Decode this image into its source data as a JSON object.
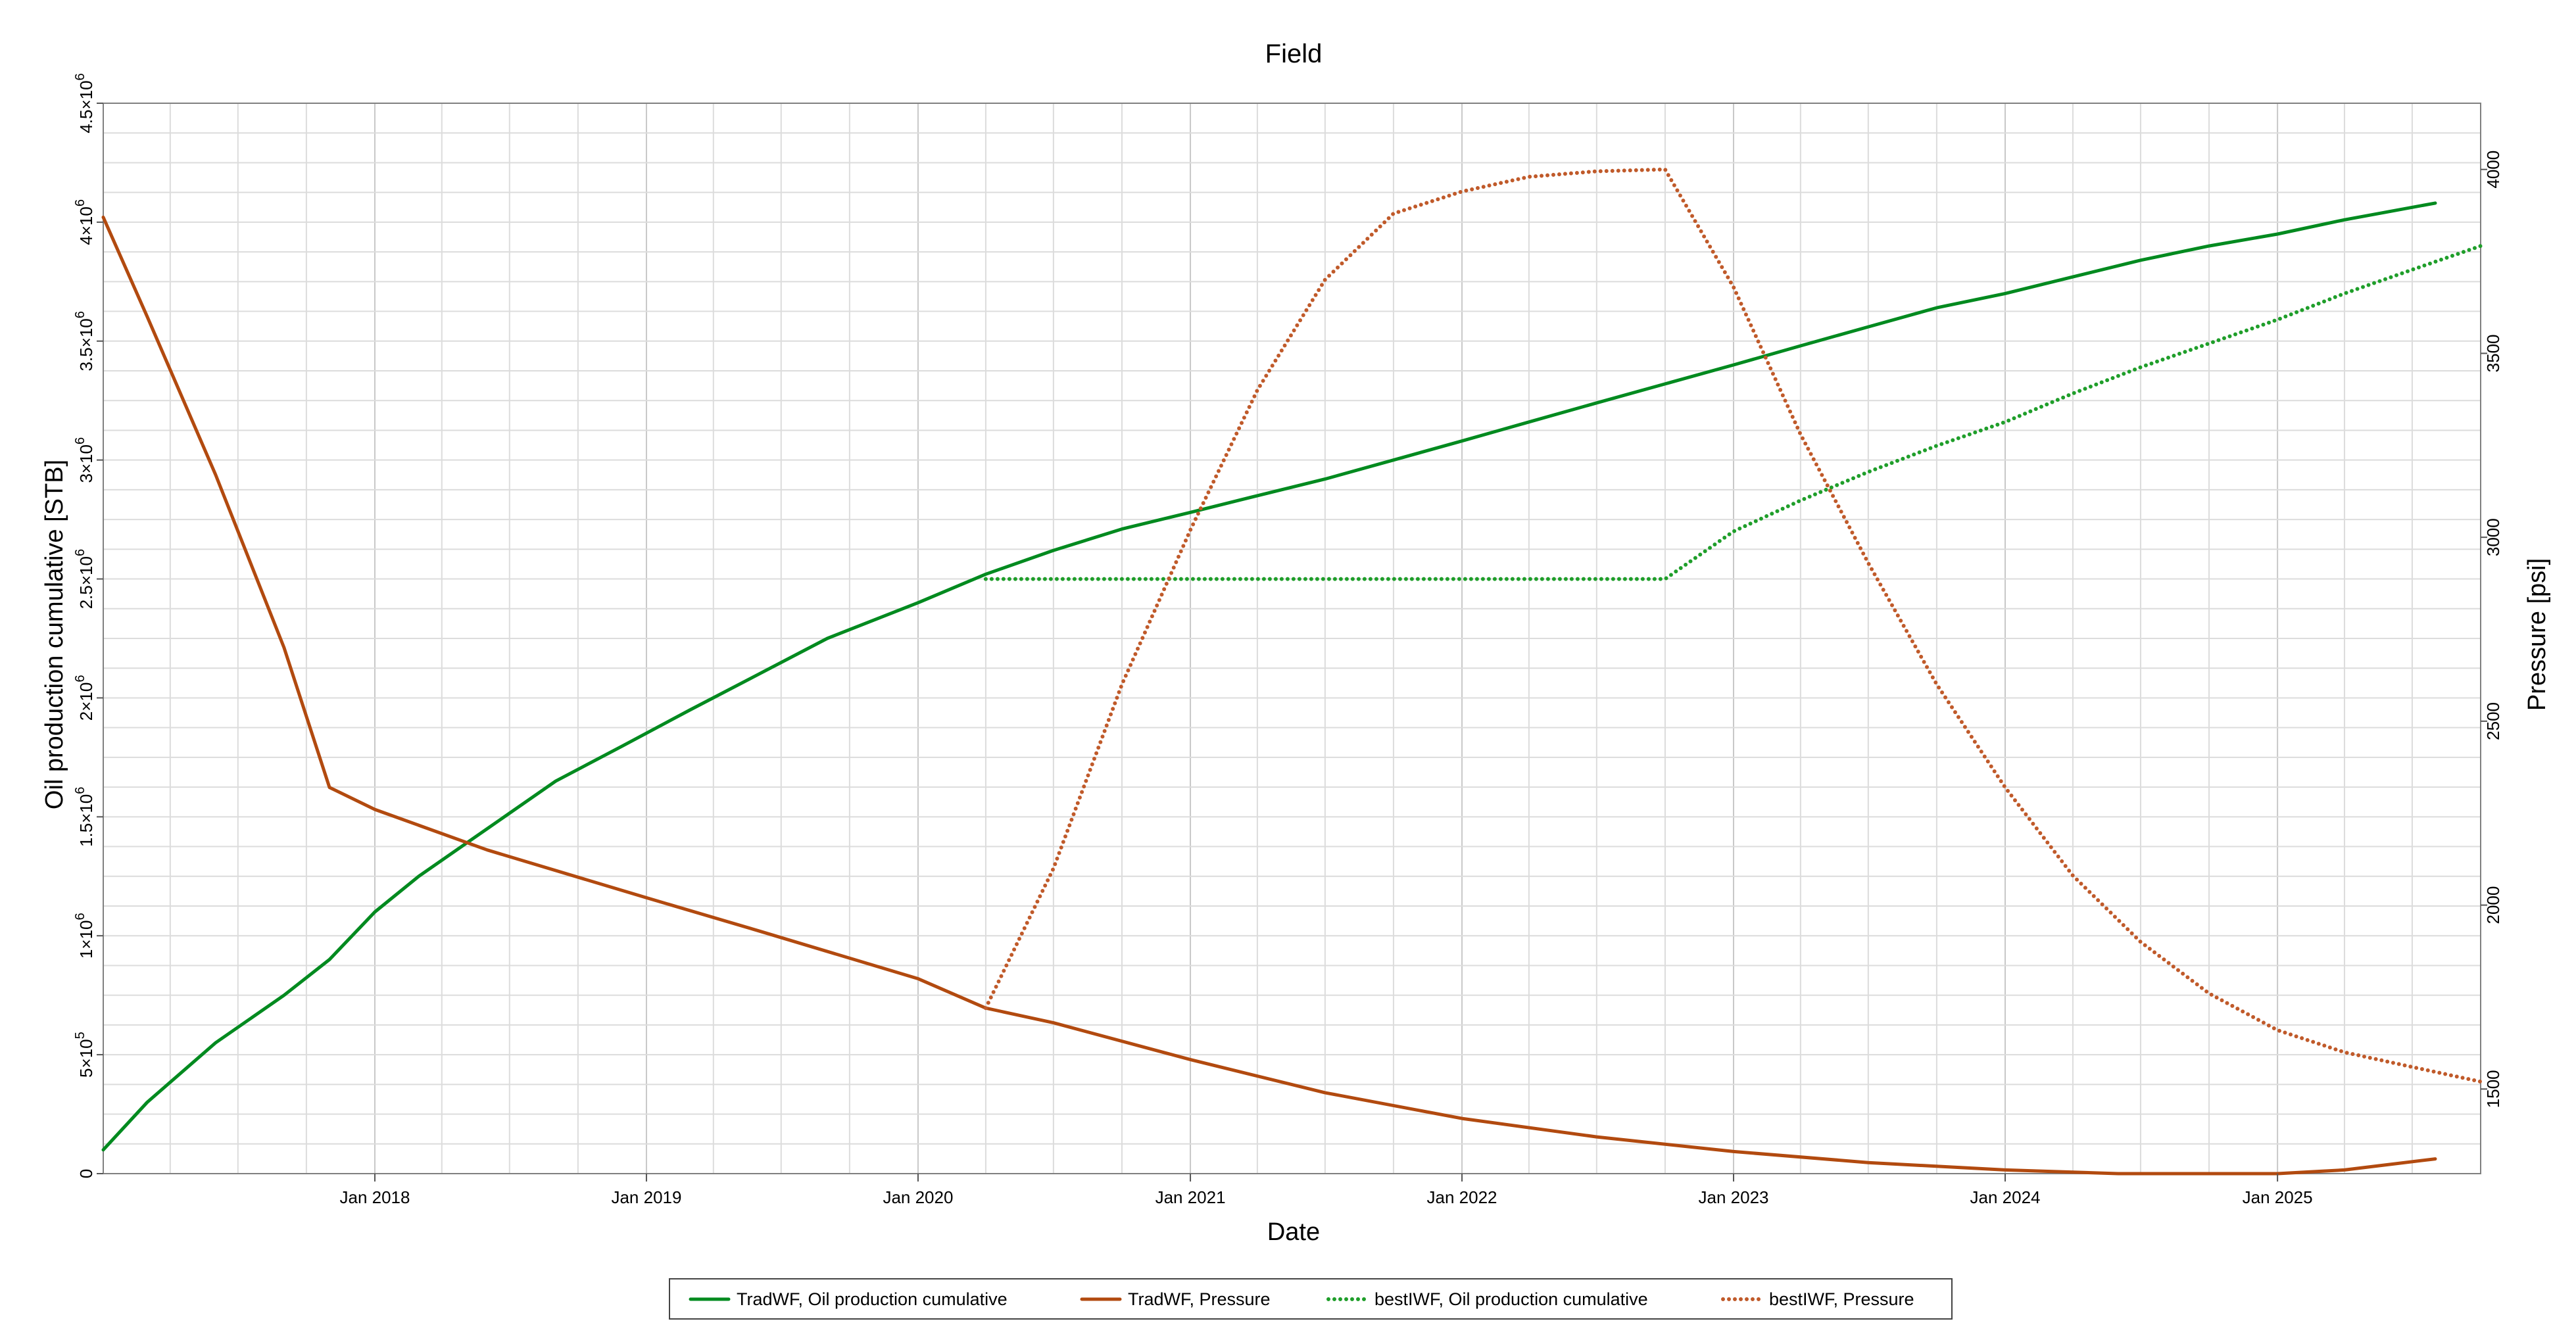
{
  "chart_data": {
    "type": "line",
    "title": "Field",
    "xlabel": "Date",
    "ylabel_left": "Oil production cumulative [STB]",
    "ylabel_right": "Pressure [psi]",
    "x_range": [
      "2017-01-01",
      "2025-10-01"
    ],
    "ylim_left": [
      0,
      4500000
    ],
    "ylim_right": [
      1270,
      4180
    ],
    "x_ticks": [
      {
        "label": "Jan 2018",
        "date": "2018-01-01"
      },
      {
        "label": "Jan 2019",
        "date": "2019-01-01"
      },
      {
        "label": "Jan 2020",
        "date": "2020-01-01"
      },
      {
        "label": "Jan 2021",
        "date": "2021-01-01"
      },
      {
        "label": "Jan 2022",
        "date": "2022-01-01"
      },
      {
        "label": "Jan 2023",
        "date": "2023-01-01"
      },
      {
        "label": "Jan 2024",
        "date": "2024-01-01"
      },
      {
        "label": "Jan 2025",
        "date": "2025-01-01"
      }
    ],
    "y_left_ticks": [
      {
        "value": 0,
        "mantissa": "0",
        "exp": ""
      },
      {
        "value": 500000,
        "mantissa": "5×10",
        "exp": "5"
      },
      {
        "value": 1000000,
        "mantissa": "1×10",
        "exp": "6"
      },
      {
        "value": 1500000,
        "mantissa": "1.5×10",
        "exp": "6"
      },
      {
        "value": 2000000,
        "mantissa": "2×10",
        "exp": "6"
      },
      {
        "value": 2500000,
        "mantissa": "2.5×10",
        "exp": "6"
      },
      {
        "value": 3000000,
        "mantissa": "3×10",
        "exp": "6"
      },
      {
        "value": 3500000,
        "mantissa": "3.5×10",
        "exp": "6"
      },
      {
        "value": 4000000,
        "mantissa": "4×10",
        "exp": "6"
      },
      {
        "value": 4500000,
        "mantissa": "4.5×10",
        "exp": "6"
      }
    ],
    "y_right_ticks": [
      {
        "value": 1500,
        "label": "1500"
      },
      {
        "value": 2000,
        "label": "2000"
      },
      {
        "value": 2500,
        "label": "2500"
      },
      {
        "value": 3000,
        "label": "3000"
      },
      {
        "value": 3500,
        "label": "3500"
      },
      {
        "value": 4000,
        "label": "4000"
      }
    ],
    "grid": true,
    "legend_position": "bottom",
    "series": [
      {
        "name": "TradWF, Oil production cumulative",
        "axis": "left",
        "color": "#008a1f",
        "style": "solid",
        "points": [
          [
            "2017-01-01",
            100000
          ],
          [
            "2017-03-01",
            300000
          ],
          [
            "2017-06-01",
            550000
          ],
          [
            "2017-09-01",
            750000
          ],
          [
            "2017-11-01",
            900000
          ],
          [
            "2018-01-01",
            1100000
          ],
          [
            "2018-03-01",
            1250000
          ],
          [
            "2018-06-01",
            1450000
          ],
          [
            "2018-09-01",
            1650000
          ],
          [
            "2018-12-01",
            1800000
          ],
          [
            "2019-03-01",
            1950000
          ],
          [
            "2019-06-01",
            2100000
          ],
          [
            "2019-09-01",
            2250000
          ],
          [
            "2020-01-01",
            2400000
          ],
          [
            "2020-04-01",
            2520000
          ],
          [
            "2020-07-01",
            2620000
          ],
          [
            "2020-10-01",
            2710000
          ],
          [
            "2021-01-01",
            2780000
          ],
          [
            "2021-04-01",
            2850000
          ],
          [
            "2021-07-01",
            2920000
          ],
          [
            "2021-10-01",
            3000000
          ],
          [
            "2022-01-01",
            3080000
          ],
          [
            "2022-04-01",
            3160000
          ],
          [
            "2022-07-01",
            3240000
          ],
          [
            "2022-10-01",
            3320000
          ],
          [
            "2023-01-01",
            3400000
          ],
          [
            "2023-04-01",
            3480000
          ],
          [
            "2023-07-01",
            3560000
          ],
          [
            "2023-10-01",
            3640000
          ],
          [
            "2024-01-01",
            3700000
          ],
          [
            "2024-04-01",
            3770000
          ],
          [
            "2024-07-01",
            3840000
          ],
          [
            "2024-10-01",
            3900000
          ],
          [
            "2025-01-01",
            3950000
          ],
          [
            "2025-04-01",
            4010000
          ],
          [
            "2025-08-01",
            4080000
          ]
        ]
      },
      {
        "name": "TradWF, Pressure",
        "axis": "right",
        "color": "#b24a0f",
        "style": "solid",
        "points": [
          [
            "2017-01-01",
            3870
          ],
          [
            "2017-03-01",
            3600
          ],
          [
            "2017-06-01",
            3170
          ],
          [
            "2017-09-01",
            2700
          ],
          [
            "2017-11-01",
            2320
          ],
          [
            "2018-01-01",
            2260
          ],
          [
            "2018-06-01",
            2150
          ],
          [
            "2019-01-01",
            2020
          ],
          [
            "2019-06-01",
            1930
          ],
          [
            "2020-01-01",
            1800
          ],
          [
            "2020-04-01",
            1720
          ],
          [
            "2020-07-01",
            1680
          ],
          [
            "2021-01-01",
            1580
          ],
          [
            "2021-07-01",
            1490
          ],
          [
            "2022-01-01",
            1420
          ],
          [
            "2022-07-01",
            1370
          ],
          [
            "2023-01-01",
            1330
          ],
          [
            "2023-07-01",
            1300
          ],
          [
            "2024-01-01",
            1280
          ],
          [
            "2024-06-01",
            1270
          ],
          [
            "2025-01-01",
            1270
          ],
          [
            "2025-04-01",
            1280
          ],
          [
            "2025-08-01",
            1310
          ]
        ]
      },
      {
        "name": "bestIWF, Oil production cumulative",
        "axis": "left",
        "color": "#1f9e2a",
        "style": "dotted",
        "points": [
          [
            "2020-04-01",
            2500000
          ],
          [
            "2021-01-01",
            2500000
          ],
          [
            "2022-01-01",
            2500000
          ],
          [
            "2022-10-01",
            2500000
          ],
          [
            "2023-01-01",
            2700000
          ],
          [
            "2023-04-01",
            2830000
          ],
          [
            "2023-07-01",
            2950000
          ],
          [
            "2023-10-01",
            3060000
          ],
          [
            "2024-01-01",
            3160000
          ],
          [
            "2024-04-01",
            3280000
          ],
          [
            "2024-07-01",
            3390000
          ],
          [
            "2024-10-01",
            3490000
          ],
          [
            "2025-01-01",
            3590000
          ],
          [
            "2025-04-01",
            3700000
          ],
          [
            "2025-07-01",
            3800000
          ],
          [
            "2025-10-01",
            3900000
          ]
        ]
      },
      {
        "name": "bestIWF, Pressure",
        "axis": "right",
        "color": "#c05a2a",
        "style": "dotted",
        "points": [
          [
            "2020-04-01",
            1720
          ],
          [
            "2020-07-01",
            2100
          ],
          [
            "2020-10-01",
            2600
          ],
          [
            "2021-01-01",
            3020
          ],
          [
            "2021-04-01",
            3400
          ],
          [
            "2021-07-01",
            3700
          ],
          [
            "2021-10-01",
            3880
          ],
          [
            "2022-01-01",
            3940
          ],
          [
            "2022-04-01",
            3980
          ],
          [
            "2022-07-01",
            3995
          ],
          [
            "2022-10-01",
            4000
          ],
          [
            "2023-01-01",
            3680
          ],
          [
            "2023-04-01",
            3280
          ],
          [
            "2023-07-01",
            2930
          ],
          [
            "2023-10-01",
            2600
          ],
          [
            "2024-01-01",
            2320
          ],
          [
            "2024-04-01",
            2080
          ],
          [
            "2024-07-01",
            1900
          ],
          [
            "2024-10-01",
            1760
          ],
          [
            "2025-01-01",
            1660
          ],
          [
            "2025-04-01",
            1600
          ],
          [
            "2025-07-01",
            1560
          ],
          [
            "2025-10-01",
            1520
          ]
        ]
      }
    ]
  }
}
